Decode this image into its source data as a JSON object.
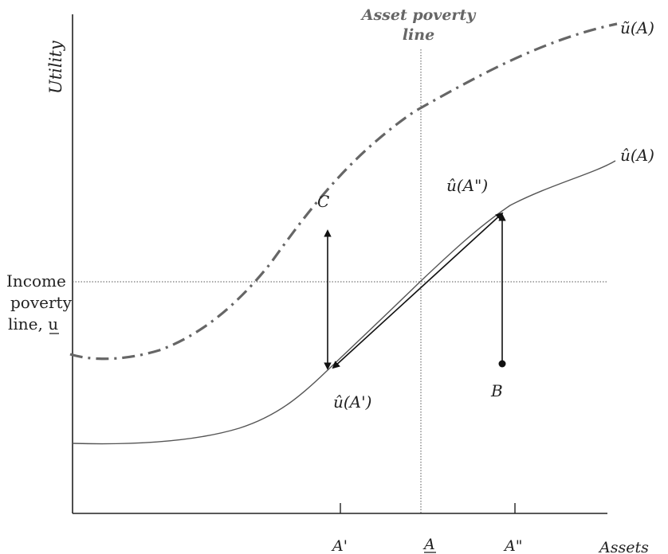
{
  "axes": {
    "y_label": "Utility",
    "x_label": "Assets",
    "x_ticks": [
      "A'",
      "A",
      "A\""
    ]
  },
  "asset_poverty_line": {
    "title_line1": "Asset poverty",
    "title_line2": "line"
  },
  "income_poverty_line": {
    "line1": "Income",
    "line2": "poverty",
    "line3_prefix": "line, ",
    "line3_symbol": "u"
  },
  "curves": {
    "upper_label": "ũ(A)",
    "lower_label": "û(A)"
  },
  "points": {
    "C": "C",
    "B": "B",
    "u_hat_A_prime": "û(A')",
    "u_hat_A_double_prime": "û(A\")"
  },
  "colors": {
    "upper_curve": "#666666",
    "lower_curve": "#555555",
    "axes": "#222222",
    "guides": "#555555",
    "arrows": "#111111"
  }
}
